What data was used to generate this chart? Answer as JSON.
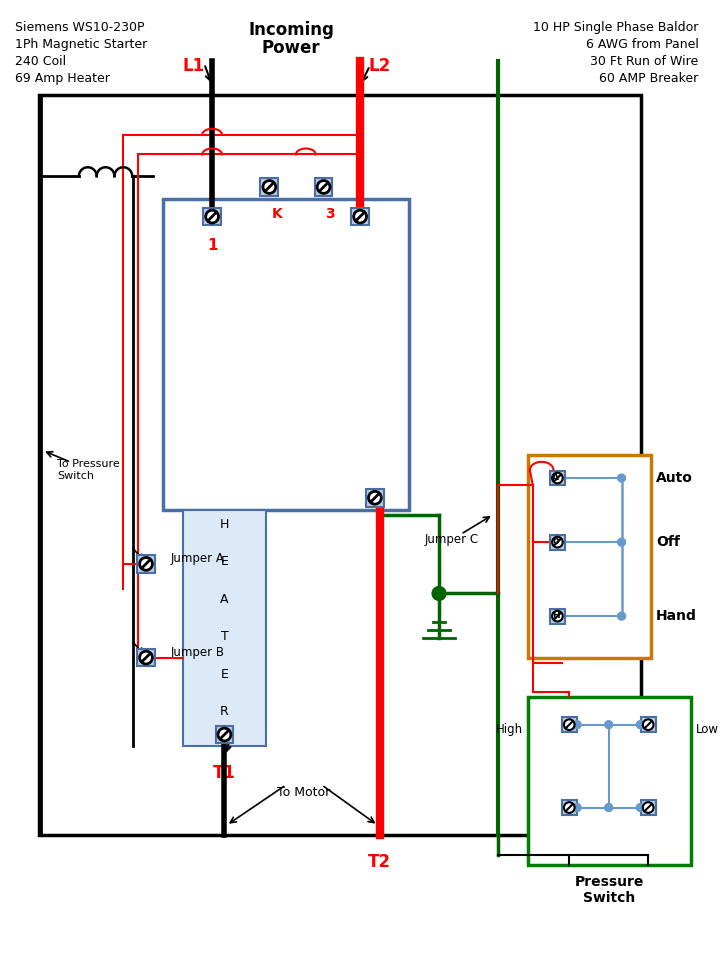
{
  "bg_color": "#ffffff",
  "text_top_left": [
    "Siemens WS10-230P",
    "1Ph Magnetic Starter",
    "240 Coil",
    "69 Amp Heater"
  ],
  "text_top_right": [
    "10 HP Single Phase Baldor",
    "6 AWG from Panel",
    "30 Ft Run of Wire",
    "60 AMP Breaker"
  ],
  "incoming_power_label": "Incoming\nPower",
  "L1_label": "L1",
  "L2_label": "L2",
  "T1_label": "T1",
  "T2_label": "T2",
  "K_label": "K",
  "label_3": "3",
  "label_1": "1",
  "jumperA_label": "Jumper A",
  "jumperB_label": "Jumper B",
  "jumperC_label": "Jumper C",
  "to_motor_label": "To Motor",
  "to_pressure_label": "To Pressure\nSwitch",
  "auto_label": "Auto",
  "off_label": "Off",
  "hand_label": "Hand",
  "high_label": "High",
  "low_label": "Low",
  "pressure_switch_label": "Pressure\nSwitch",
  "red": "#ff0000",
  "black": "#000000",
  "dark_green": "#006400",
  "blue": "#4a6fa5",
  "orange_border": "#cc7700",
  "green_border": "#008000",
  "light_blue": "#6699cc"
}
